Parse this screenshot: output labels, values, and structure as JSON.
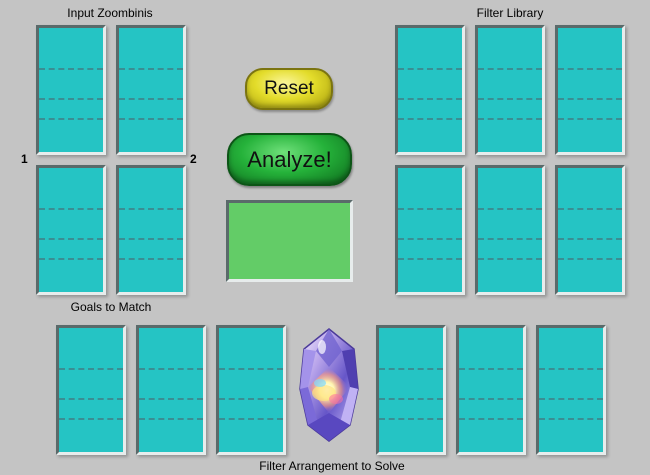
{
  "labels": {
    "input_zoombinis": "Input Zoombinis",
    "filter_library": "Filter Library",
    "goals_to_match": "Goals to Match",
    "filter_arrangement": "Filter Arrangement to Solve",
    "column_1": "1",
    "column_2": "2"
  },
  "buttons": {
    "reset": "Reset",
    "analyze": "Analyze!"
  },
  "colors": {
    "background": "#c4c4c4",
    "slot": "#25c4c4",
    "result_panel": "#63cc67",
    "reset_button": "#e3dc2a",
    "analyze_button": "#25b23a"
  },
  "icons": {
    "gem": "crystal-gem-icon"
  }
}
